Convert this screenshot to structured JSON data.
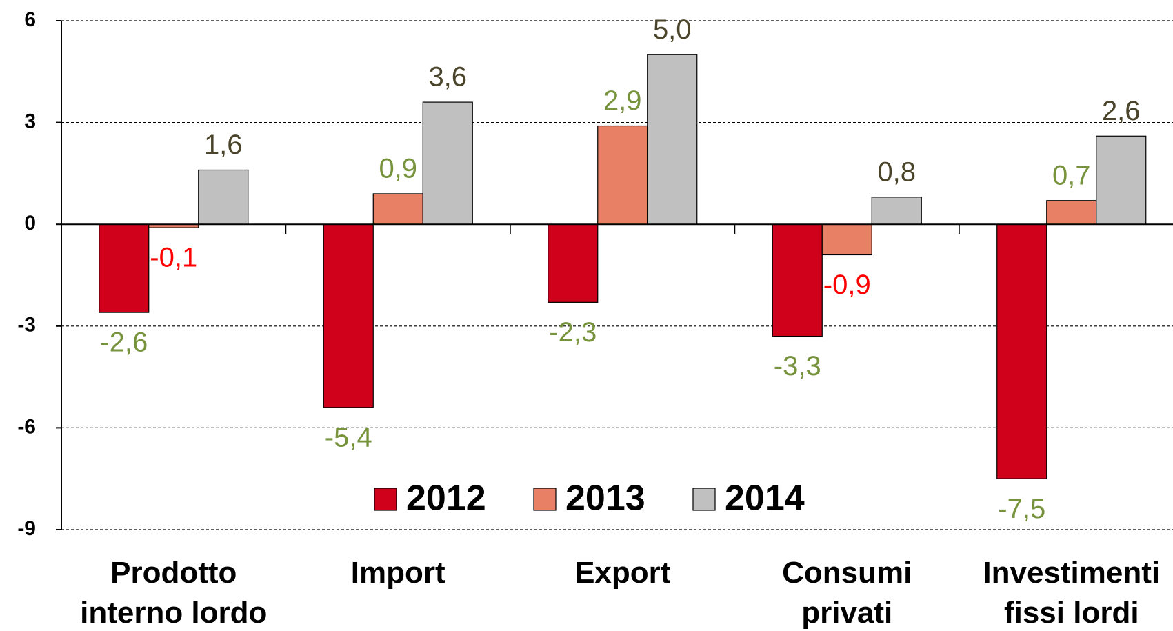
{
  "chart_data": {
    "type": "bar",
    "categories": [
      "Prodotto\ninterno lordo",
      "Import",
      "Export",
      "Consumi\nprivati",
      "Investimenti\nfissi lordi"
    ],
    "series": [
      {
        "name": "2012",
        "color": "#d0021b",
        "values": [
          -2.6,
          -5.4,
          -2.3,
          -3.3,
          -7.5
        ],
        "value_labels": [
          "-2,6",
          "-5,4",
          "-2,3",
          "-3,3",
          "-7,5"
        ],
        "label_colors": {
          "positive": "#77933c",
          "negative": "#77933c"
        }
      },
      {
        "name": "2013",
        "color": "#e88065",
        "values": [
          -0.1,
          0.9,
          2.9,
          -0.9,
          0.7
        ],
        "value_labels": [
          "-0,1",
          "0,9",
          "2,9",
          "-0,9",
          "0,7"
        ],
        "label_colors": {
          "positive": "#77933c",
          "negative": "#ff0000"
        }
      },
      {
        "name": "2014",
        "color": "#c0c0c0",
        "values": [
          1.6,
          3.6,
          5.0,
          0.8,
          2.6
        ],
        "value_labels": [
          "1,6",
          "3,6",
          "5,0",
          "0,8",
          "2,6"
        ],
        "label_colors": {
          "positive": "#4a452a",
          "negative": "#4a452a"
        }
      }
    ],
    "ylim": [
      -9,
      6
    ],
    "yticks": [
      -9,
      -6,
      -3,
      0,
      3,
      6
    ],
    "grid": true,
    "legend": "bottom"
  }
}
